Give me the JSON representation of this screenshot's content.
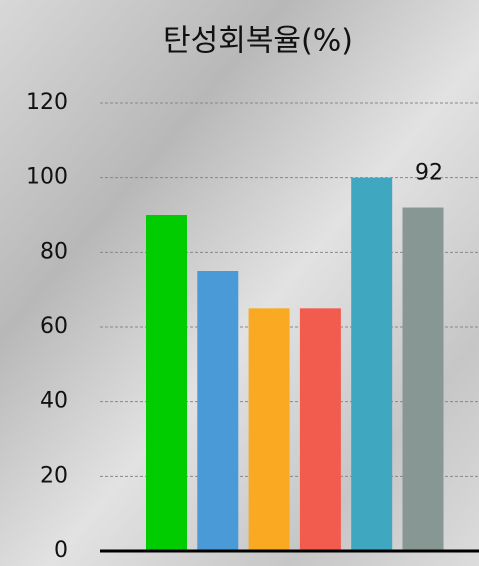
{
  "chart_data": {
    "type": "bar",
    "title": "탄성회복율(%)",
    "categories": [
      null,
      null,
      null,
      null,
      null,
      null
    ],
    "values": [
      90,
      75,
      65,
      65,
      100,
      92
    ],
    "value_labels": [
      null,
      null,
      null,
      null,
      null,
      "92"
    ],
    "colors": [
      "#00cc00",
      "#4a9ad8",
      "#f9aa22",
      "#f25c4e",
      "#3fa8c0",
      "#879794"
    ],
    "ylim": [
      0,
      120
    ],
    "yticks": [
      0,
      20,
      40,
      60,
      80,
      100,
      120
    ],
    "grid": true
  }
}
